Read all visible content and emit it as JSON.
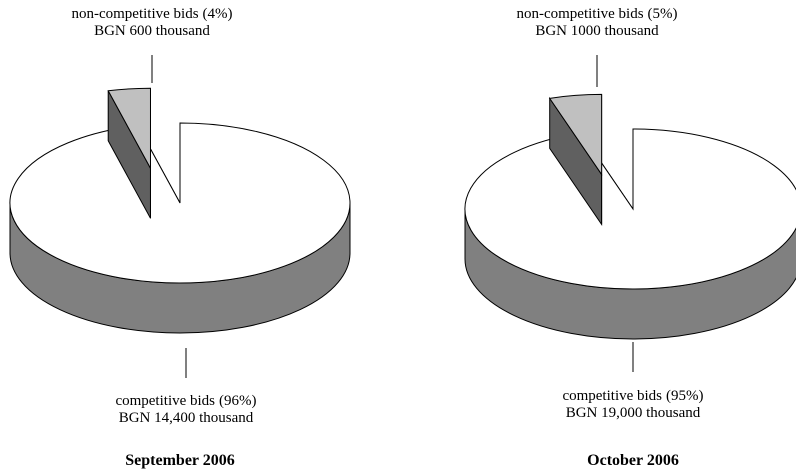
{
  "chart_data": [
    {
      "type": "pie",
      "title": "September 2006",
      "categories": [
        "competitive bids",
        "non-competitive bids"
      ],
      "values": [
        96,
        4
      ],
      "value_labels": [
        "(96%)",
        "(4%)"
      ],
      "amounts": [
        14400,
        600
      ],
      "amount_labels": [
        "BGN 14,400 thousand",
        "BGN 600 thousand"
      ],
      "colors": [
        "#ffffff",
        "#c0c0c0"
      ],
      "explode": [
        false,
        true
      ]
    },
    {
      "type": "pie",
      "title": "October 2006",
      "categories": [
        "competitive bids",
        "non-competitive bids"
      ],
      "values": [
        95,
        5
      ],
      "value_labels": [
        "(95%)",
        "(5%)"
      ],
      "amounts": [
        19000,
        1000
      ],
      "amount_labels": [
        "BGN 19,000 thousand",
        "BGN 1000 thousand"
      ],
      "colors": [
        "#ffffff",
        "#c0c0c0"
      ],
      "explode": [
        false,
        true
      ]
    }
  ]
}
